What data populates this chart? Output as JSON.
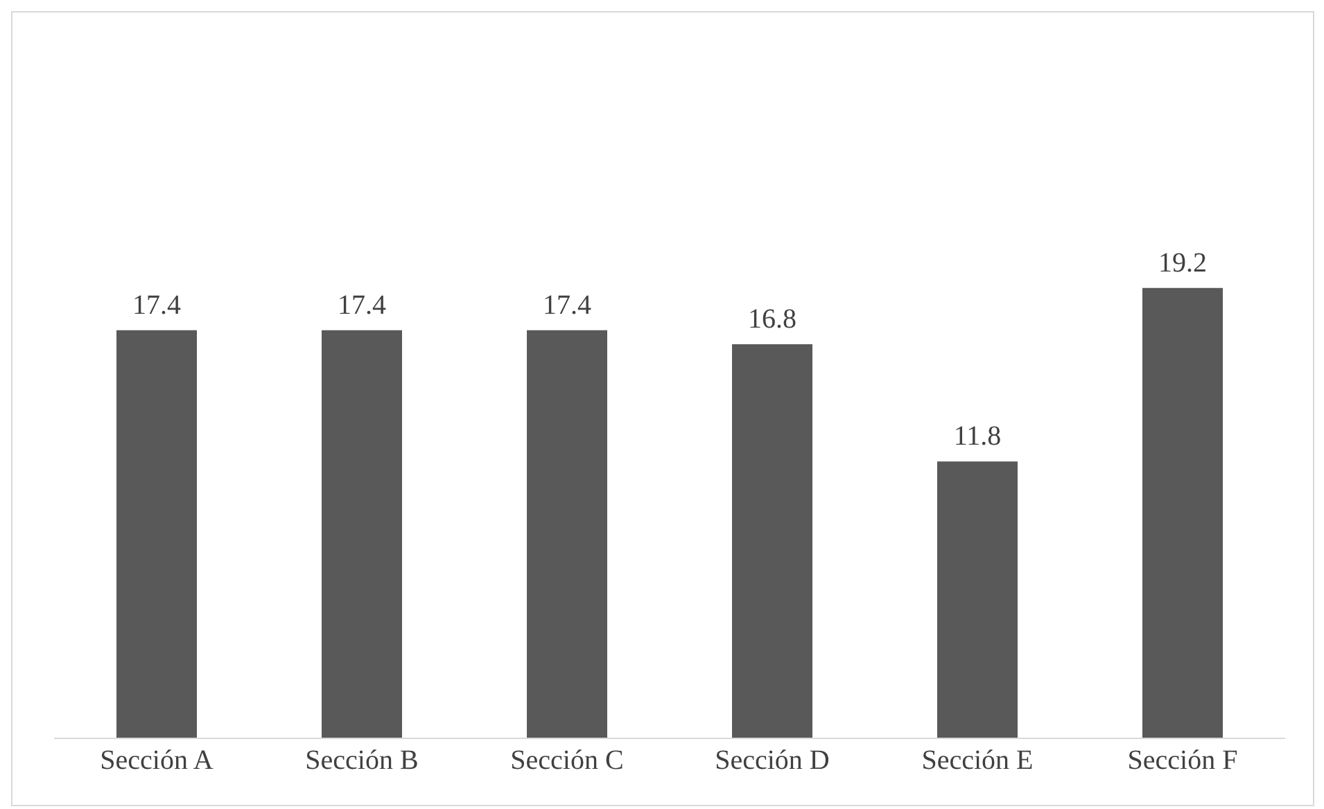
{
  "chart_data": {
    "type": "bar",
    "categories": [
      "Sección A",
      "Sección B",
      "Sección C",
      "Sección D",
      "Sección E",
      "Sección F"
    ],
    "values": [
      17.4,
      17.4,
      17.4,
      16.8,
      11.8,
      19.2
    ],
    "color": "#595959",
    "data_labels": true
  }
}
